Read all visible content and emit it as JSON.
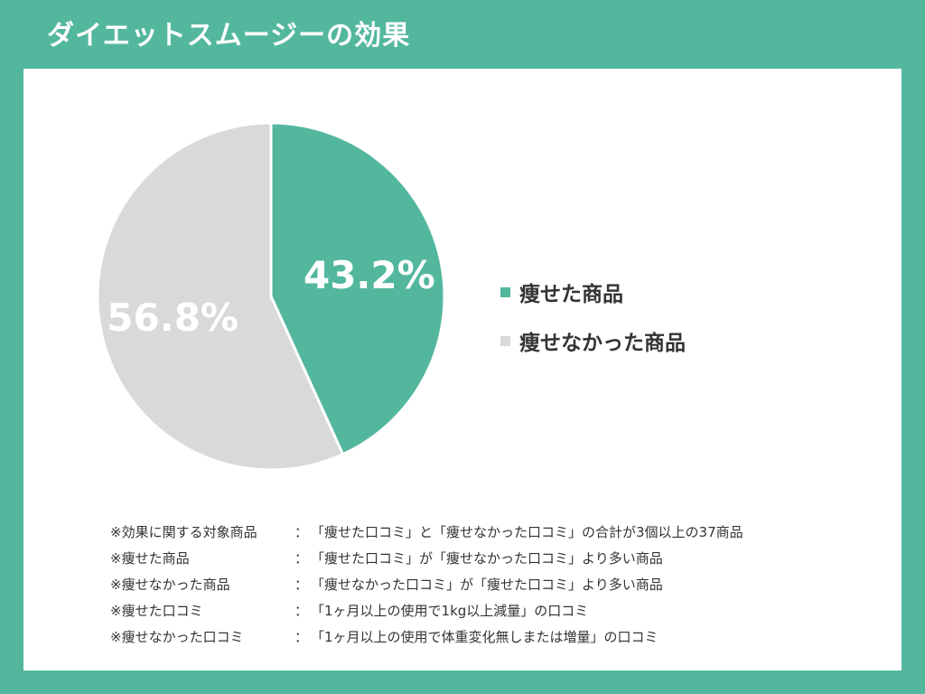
{
  "title": "ダイエットスムージーの効果",
  "chart_data": {
    "type": "pie",
    "title": "",
    "slices": [
      {
        "label": "痩せた商品",
        "value": 43.2,
        "display": "43.2%",
        "color": "#53b79e"
      },
      {
        "label": "痩せなかった商品",
        "value": 56.8,
        "display": "56.8%",
        "color": "#d9d9d9"
      }
    ],
    "start": "12 o'clock",
    "direction": "clockwise",
    "legend_position": "right"
  },
  "notes": [
    {
      "term": "※効果に関する対象商品",
      "sep": "：",
      "desc": "「痩せた口コミ」と「痩せなかった口コミ」の合計が3個以上の37商品"
    },
    {
      "term": "※痩せた商品",
      "sep": "：",
      "desc": "「痩せた口コミ」が「痩せなかった口コミ」より多い商品"
    },
    {
      "term": "※痩せなかった商品",
      "sep": "：",
      "desc": "「痩せなかった口コミ」が「痩せた口コミ」より多い商品"
    },
    {
      "term": "※痩せた口コミ",
      "sep": "：",
      "desc": "「1ヶ月以上の使用で1kg以上減量」の口コミ"
    },
    {
      "term": "※痩せなかった口コミ",
      "sep": "：",
      "desc": "「1ヶ月以上の使用で体重変化無しまたは増量」の口コミ"
    }
  ]
}
